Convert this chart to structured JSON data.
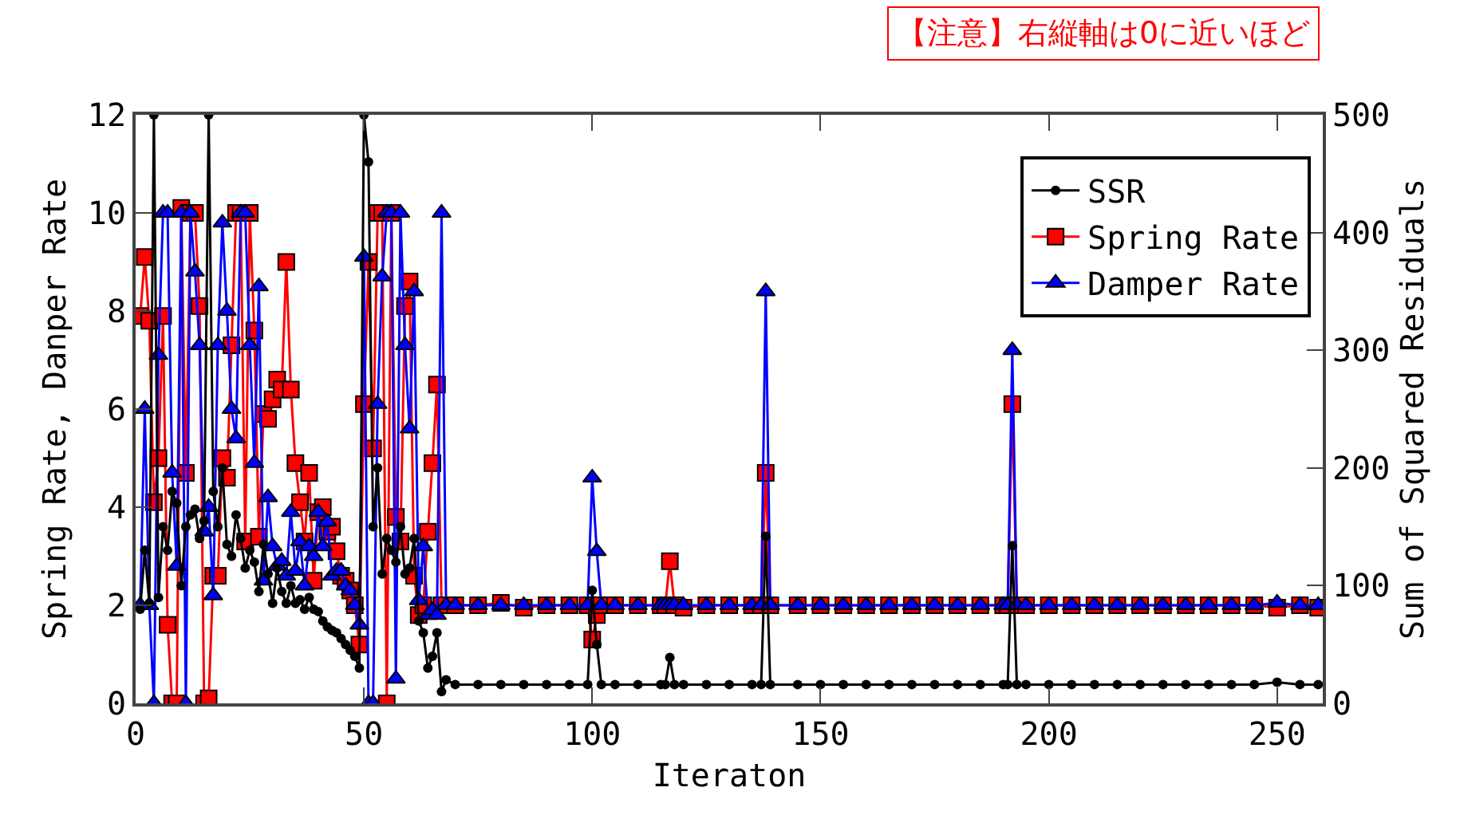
{
  "chart_data": {
    "type": "line",
    "xlabel": "Iteraton",
    "ylabel": "Spring Rate, Danper Rate",
    "y2label": "Sum of Squared Residuals",
    "annotations": [
      "【注意】右縦軸は0に近いほど"
    ],
    "x": [
      1,
      2,
      3,
      4,
      5,
      6,
      7,
      8,
      9,
      10,
      11,
      12,
      13,
      14,
      15,
      16,
      17,
      18,
      19,
      20,
      21,
      22,
      23,
      24,
      25,
      26,
      27,
      28,
      29,
      30,
      31,
      32,
      33,
      34,
      35,
      36,
      37,
      38,
      39,
      40,
      41,
      42,
      43,
      44,
      45,
      46,
      47,
      48,
      49,
      50,
      51,
      52,
      53,
      54,
      55,
      56,
      57,
      58,
      59,
      60,
      61,
      62,
      63,
      64,
      65,
      66,
      67,
      68,
      70,
      75,
      80,
      85,
      90,
      95,
      99,
      100,
      101,
      102,
      105,
      110,
      115,
      116,
      117,
      118,
      120,
      125,
      130,
      135,
      137,
      138,
      139,
      145,
      150,
      155,
      160,
      165,
      170,
      175,
      180,
      185,
      190,
      191,
      192,
      193,
      195,
      200,
      205,
      210,
      215,
      220,
      225,
      230,
      235,
      240,
      245,
      250,
      255,
      259
    ],
    "xlim": [
      0,
      260
    ],
    "xticks": [
      0,
      50,
      100,
      150,
      200,
      250
    ],
    "ylim": [
      0,
      12
    ],
    "yticks": [
      0,
      2,
      4,
      6,
      8,
      10,
      12
    ],
    "y2lim": [
      0,
      500
    ],
    "y2ticks": [
      0,
      100,
      200,
      300,
      400,
      500
    ],
    "legend": "top right",
    "line_style": "solid",
    "series": [
      {
        "name": "SSR",
        "color": "#000000",
        "marker": "circle",
        "axis": "y2",
        "values": [
          80,
          130,
          85,
          500,
          90,
          150,
          130,
          180,
          170,
          100,
          150,
          160,
          165,
          140,
          155,
          500,
          180,
          150,
          200,
          135,
          125,
          160,
          140,
          115,
          130,
          120,
          95,
          135,
          110,
          85,
          115,
          95,
          85,
          100,
          85,
          88,
          80,
          90,
          80,
          78,
          70,
          65,
          62,
          60,
          55,
          50,
          45,
          40,
          30,
          500,
          460,
          150,
          200,
          110,
          140,
          130,
          120,
          150,
          110,
          115,
          140,
          70,
          60,
          30,
          40,
          60,
          10,
          20,
          16,
          16,
          16,
          16,
          16,
          16,
          16,
          96,
          50,
          16,
          16,
          16,
          16,
          16,
          39,
          16,
          16,
          16,
          16,
          16,
          16,
          142,
          16,
          16,
          16,
          16,
          16,
          16,
          16,
          16,
          16,
          16,
          16,
          16,
          134,
          16,
          16,
          16,
          16,
          16,
          16,
          16,
          16,
          16,
          16,
          16,
          16,
          18,
          16,
          16
        ]
      },
      {
        "name": "Spring Rate",
        "color": "#ff0000",
        "marker": "square",
        "values": [
          7.9,
          9.1,
          7.8,
          4.1,
          5.0,
          7.9,
          1.6,
          0,
          0,
          10.1,
          4.7,
          10,
          10,
          8.1,
          0,
          0.1,
          2.6,
          2.6,
          5,
          4.6,
          7.3,
          10,
          10,
          3.3,
          10,
          7.6,
          3.4,
          5.9,
          5.8,
          6.2,
          6.6,
          6.4,
          9,
          6.4,
          4.9,
          4.1,
          3.3,
          4.7,
          2.5,
          3.9,
          4.0,
          3.5,
          3.6,
          3.1,
          2.6,
          2.5,
          2.3,
          2.0,
          1.2,
          6.1,
          9.0,
          5.2,
          10,
          10,
          0,
          10,
          3.8,
          3.3,
          8.1,
          8.6,
          2.6,
          1.8,
          2.0,
          3.5,
          4.9,
          6.5,
          2.0,
          2.0,
          2.0,
          2.0,
          2.05,
          1.95,
          2.0,
          2.0,
          2.0,
          1.3,
          1.8,
          2.0,
          2.0,
          2.0,
          2.0,
          2.0,
          2.9,
          2.0,
          1.95,
          2.0,
          2.0,
          2.0,
          2.0,
          4.7,
          2.0,
          2.0,
          2.0,
          2.0,
          2.0,
          2.0,
          2.0,
          2.0,
          2.0,
          2.0,
          2.0,
          2.0,
          6.1,
          2.0,
          2.0,
          2.0,
          2.0,
          2.0,
          2.0,
          2.0,
          2.0,
          2.0,
          2.0,
          2.0,
          2.0,
          1.95,
          2.0,
          1.95
        ]
      },
      {
        "name": "Damper Rate",
        "color": "#0000ff",
        "marker": "triangle",
        "values": [
          2.0,
          6.0,
          2.0,
          0,
          7.1,
          10,
          10,
          4.7,
          2.8,
          10,
          0,
          10,
          8.8,
          7.3,
          3.5,
          4.0,
          2.2,
          7.3,
          9.8,
          8.0,
          6.0,
          5.4,
          10,
          10,
          7.3,
          4.9,
          8.5,
          2.5,
          4.2,
          3.2,
          2.8,
          2.9,
          2.6,
          3.9,
          2.7,
          3.3,
          2.4,
          3.2,
          3.0,
          3.9,
          3.2,
          3.7,
          2.6,
          2.7,
          2.7,
          2.4,
          2.3,
          2.0,
          1.6,
          9.1,
          0,
          0,
          6.1,
          8.7,
          10,
          10,
          0.5,
          10,
          7.3,
          5.6,
          8.4,
          2.1,
          3.2,
          1.8,
          1.9,
          1.8,
          10,
          2.0,
          2.0,
          2.0,
          2.0,
          2.0,
          2.0,
          2.0,
          2.0,
          4.6,
          3.1,
          2.0,
          2.0,
          2.0,
          2.0,
          2.0,
          2.0,
          2.0,
          2.0,
          2.0,
          2.0,
          2.0,
          2.0,
          8.4,
          2.0,
          2.0,
          2.0,
          2.0,
          2.0,
          2.0,
          2.0,
          2.0,
          2.0,
          2.0,
          2.0,
          2.0,
          7.2,
          2.0,
          2.0,
          2.0,
          2.0,
          2.0,
          2.0,
          2.0,
          2.0,
          2.0,
          2.0,
          2.0,
          2.0,
          2.05,
          2.0,
          2.0
        ]
      }
    ]
  }
}
